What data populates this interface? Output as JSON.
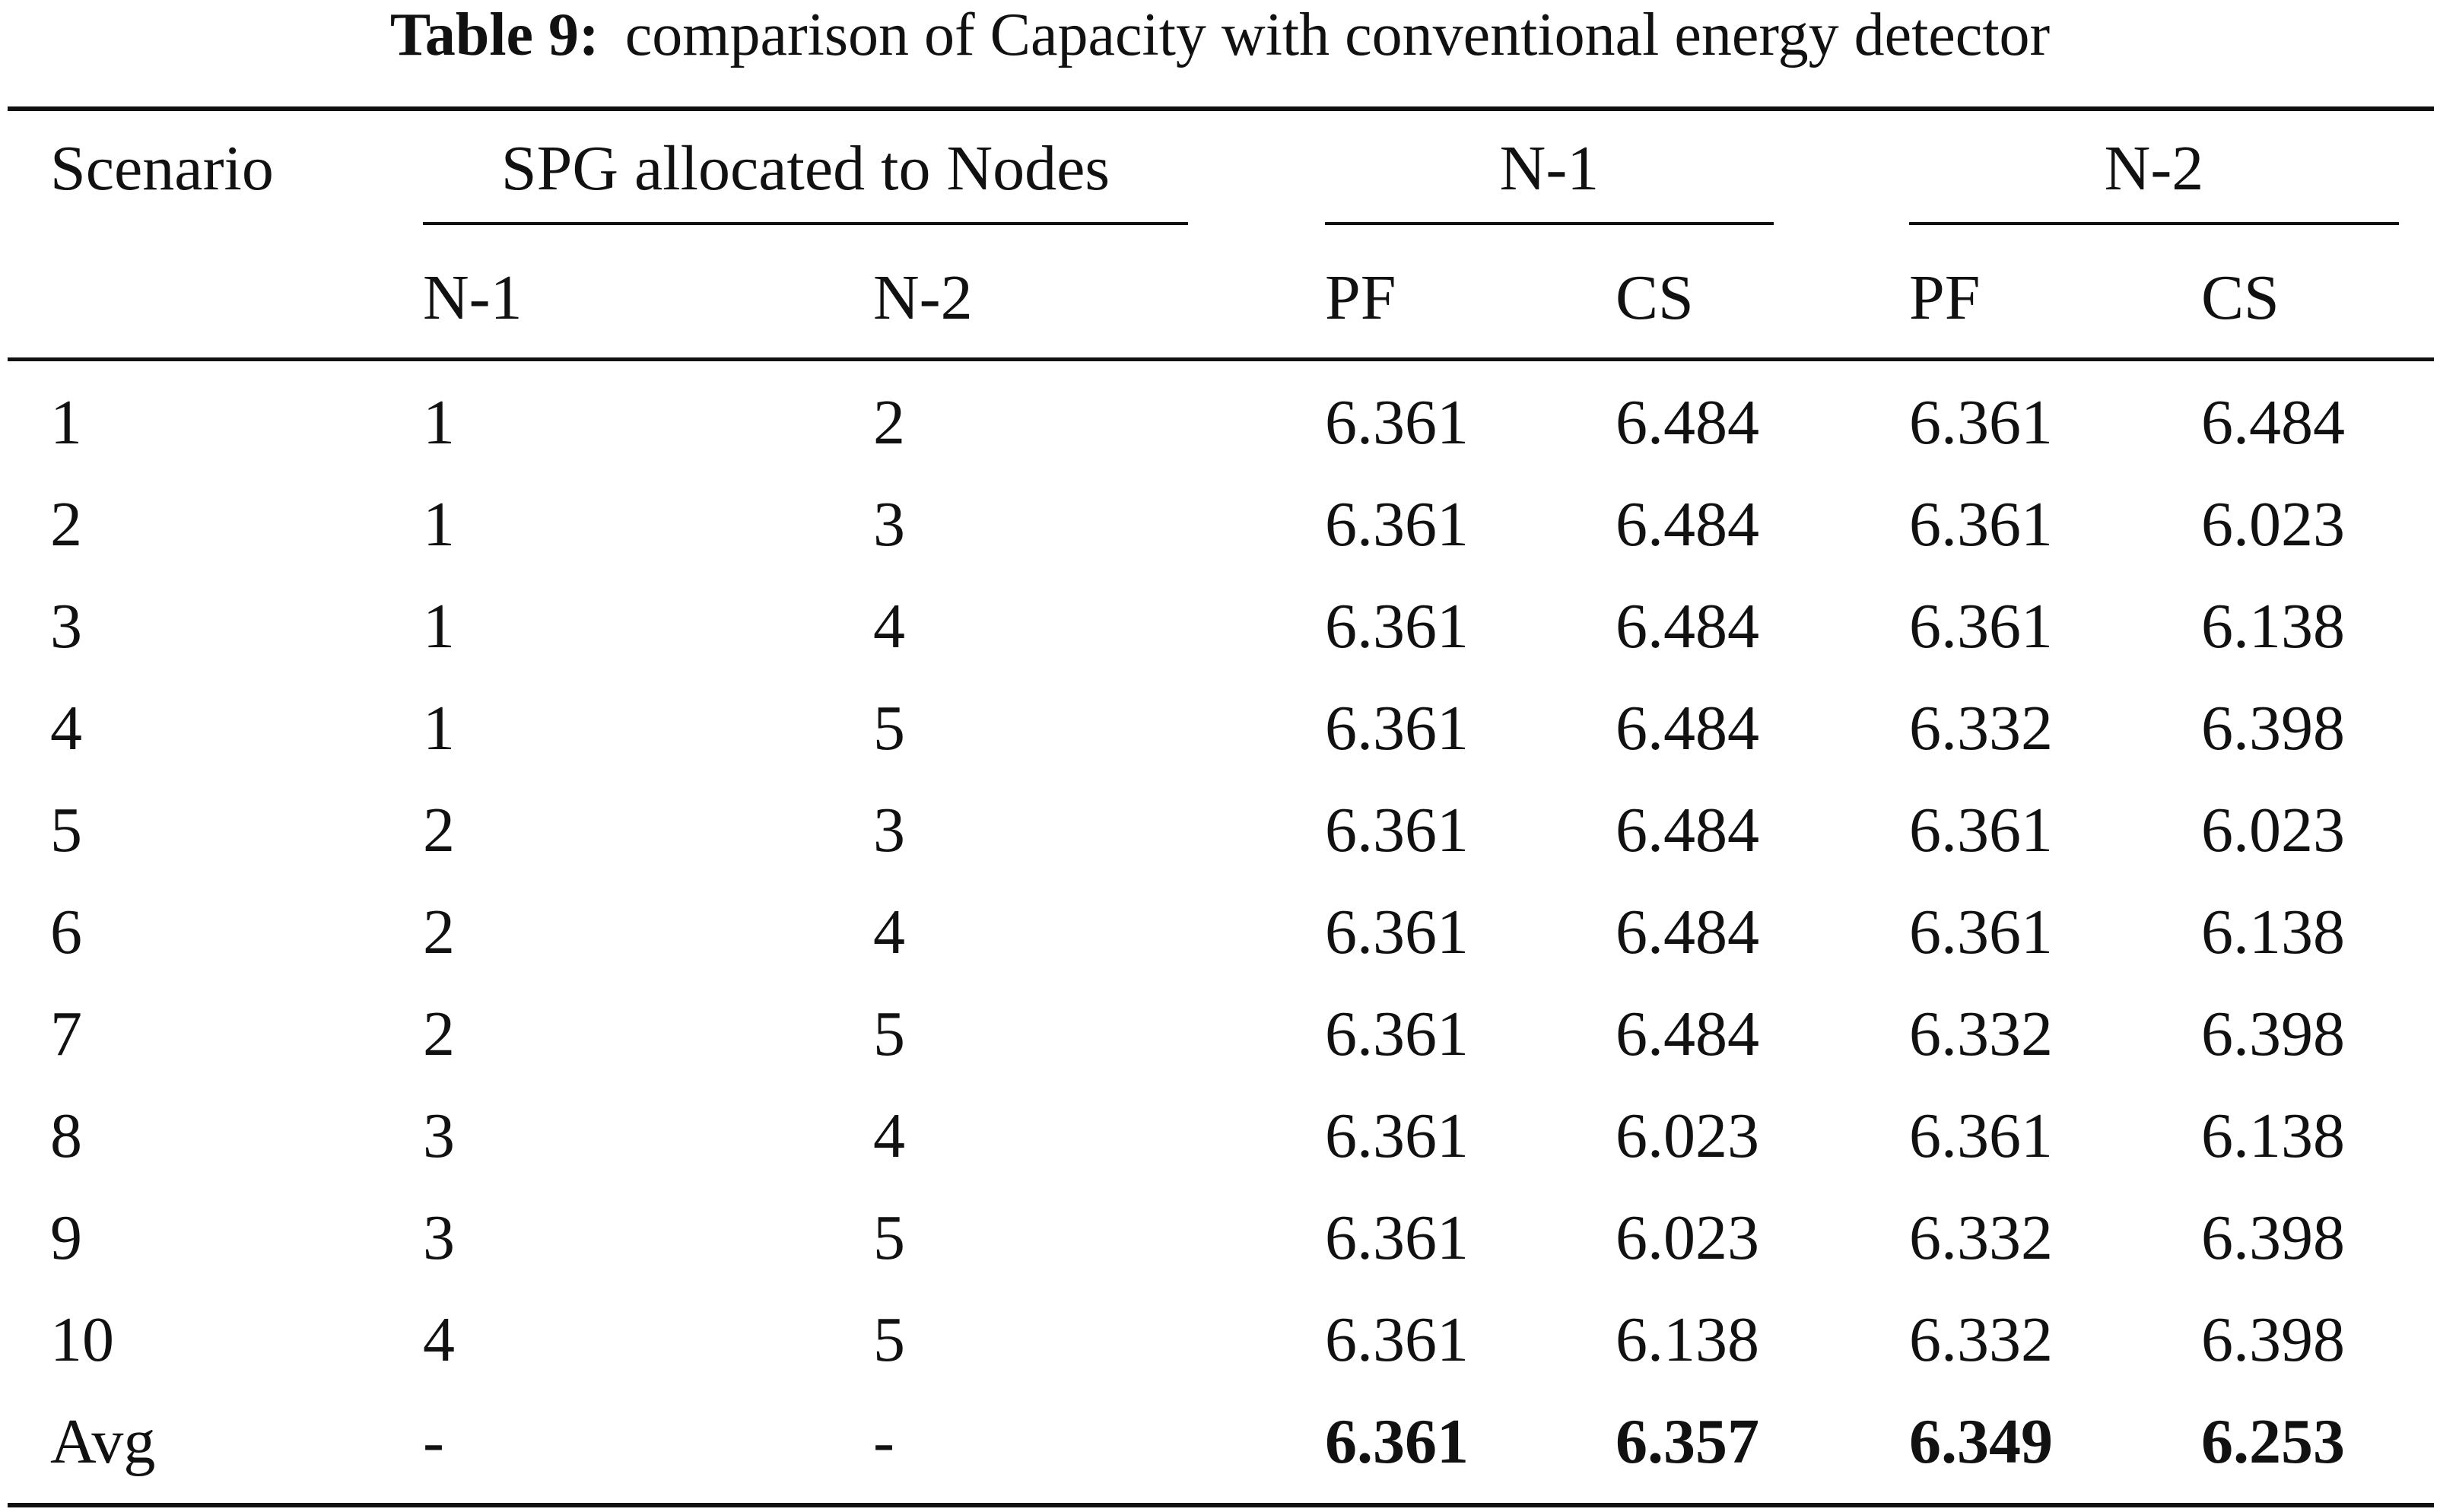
{
  "caption": {
    "label": "Table 9:",
    "text": "comparison of Capacity with conventional energy detector"
  },
  "header": {
    "scenario": "Scenario",
    "spg_group": "SPG allocated to Nodes",
    "n1_group": "N-1",
    "n2_group": "N-2",
    "sub": {
      "spg_n1": "N-1",
      "spg_n2": "N-2",
      "n1_pf": "PF",
      "n1_cs": "CS",
      "n2_pf": "PF",
      "n2_cs": "CS"
    }
  },
  "rows": [
    {
      "scenario": "1",
      "spg_n1": "1",
      "spg_n2": "2",
      "n1_pf": "6.361",
      "n1_cs": "6.484",
      "n2_pf": "6.361",
      "n2_cs": "6.484"
    },
    {
      "scenario": "2",
      "spg_n1": "1",
      "spg_n2": "3",
      "n1_pf": "6.361",
      "n1_cs": "6.484",
      "n2_pf": "6.361",
      "n2_cs": "6.023"
    },
    {
      "scenario": "3",
      "spg_n1": "1",
      "spg_n2": "4",
      "n1_pf": "6.361",
      "n1_cs": "6.484",
      "n2_pf": "6.361",
      "n2_cs": "6.138"
    },
    {
      "scenario": "4",
      "spg_n1": "1",
      "spg_n2": "5",
      "n1_pf": "6.361",
      "n1_cs": "6.484",
      "n2_pf": "6.332",
      "n2_cs": "6.398"
    },
    {
      "scenario": "5",
      "spg_n1": "2",
      "spg_n2": "3",
      "n1_pf": "6.361",
      "n1_cs": "6.484",
      "n2_pf": "6.361",
      "n2_cs": "6.023"
    },
    {
      "scenario": "6",
      "spg_n1": "2",
      "spg_n2": "4",
      "n1_pf": "6.361",
      "n1_cs": "6.484",
      "n2_pf": "6.361",
      "n2_cs": "6.138"
    },
    {
      "scenario": "7",
      "spg_n1": "2",
      "spg_n2": "5",
      "n1_pf": "6.361",
      "n1_cs": "6.484",
      "n2_pf": "6.332",
      "n2_cs": "6.398"
    },
    {
      "scenario": "8",
      "spg_n1": "3",
      "spg_n2": "4",
      "n1_pf": "6.361",
      "n1_cs": "6.023",
      "n2_pf": "6.361",
      "n2_cs": "6.138"
    },
    {
      "scenario": "9",
      "spg_n1": "3",
      "spg_n2": "5",
      "n1_pf": "6.361",
      "n1_cs": "6.023",
      "n2_pf": "6.332",
      "n2_cs": "6.398"
    },
    {
      "scenario": "10",
      "spg_n1": "4",
      "spg_n2": "5",
      "n1_pf": "6.361",
      "n1_cs": "6.138",
      "n2_pf": "6.332",
      "n2_cs": "6.398"
    }
  ],
  "avg": {
    "scenario": "Avg",
    "spg_n1": "-",
    "spg_n2": "-",
    "n1_pf": "6.361",
    "n1_cs": "6.357",
    "n2_pf": "6.349",
    "n2_cs": "6.253"
  }
}
